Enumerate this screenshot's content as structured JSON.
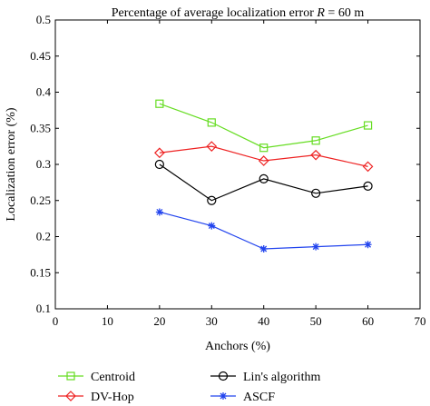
{
  "chart_data": {
    "type": "line",
    "title": "Percentage of average localization error ",
    "title_var": "R",
    "title_suffix": " = 60 m",
    "xlabel": "Anchors (%)",
    "ylabel": "Localization error (%)",
    "xlim": [
      0,
      70
    ],
    "ylim": [
      0.1,
      0.5
    ],
    "xticks": [
      "0",
      "10",
      "20",
      "30",
      "40",
      "50",
      "60",
      "70"
    ],
    "yticks": [
      "0.1",
      "0.15",
      "0.2",
      "0.25",
      "0.3",
      "0.35",
      "0.4",
      "0.45",
      "0.5"
    ],
    "grid": false,
    "legend_position": "bottom",
    "x": [
      20,
      30,
      40,
      50,
      60
    ],
    "series": [
      {
        "name": "Centroid",
        "color": "#66dd22",
        "marker": "square",
        "values": [
          0.384,
          0.358,
          0.323,
          0.333,
          0.354
        ]
      },
      {
        "name": "DV-Hop",
        "color": "#ee2222",
        "marker": "diamond",
        "values": [
          0.316,
          0.325,
          0.305,
          0.313,
          0.297
        ]
      },
      {
        "name": "Lin's algorithm",
        "color": "#000000",
        "marker": "circle",
        "values": [
          0.3,
          0.25,
          0.28,
          0.26,
          0.27
        ]
      },
      {
        "name": "ASCF",
        "color": "#2244ee",
        "marker": "star",
        "values": [
          0.234,
          0.215,
          0.183,
          0.186,
          0.189
        ]
      }
    ]
  }
}
